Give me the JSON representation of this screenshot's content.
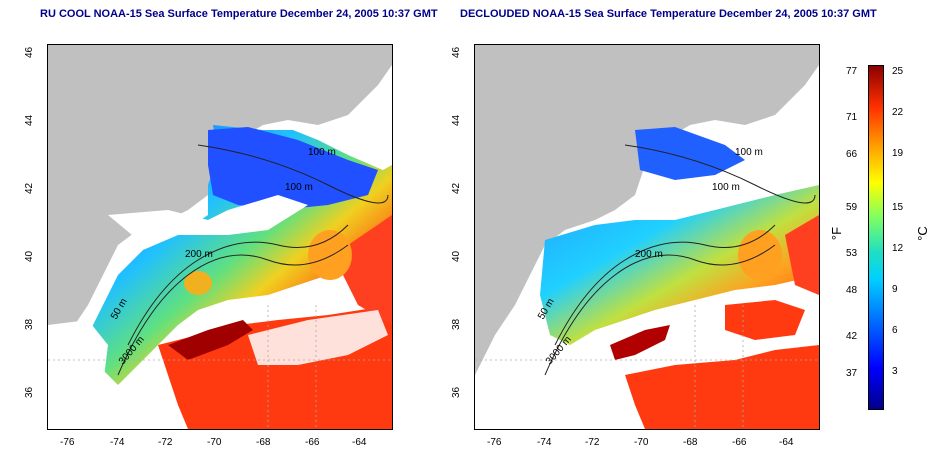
{
  "left_panel": {
    "title": "RU COOL NOAA-15 Sea Surface Temperature December 24, 2005 10:37 GMT"
  },
  "right_panel": {
    "title": "DECLOUDED NOAA-15 Sea Surface Temperature December 24, 2005 10:37 GMT"
  },
  "axes": {
    "longitude_ticks": [
      "-76",
      "-74",
      "-72",
      "-70",
      "-68",
      "-66",
      "-64"
    ],
    "latitude_ticks": [
      "46",
      "44",
      "42",
      "40",
      "38",
      "36"
    ]
  },
  "contour_labels": [
    "100 m",
    "100 m",
    "200 m",
    "200 m",
    "50 m",
    "3000 m"
  ],
  "colorbar": {
    "fahrenheit_label": "°F",
    "celsius_label": "°C",
    "fahrenheit_ticks": [
      "77",
      "71",
      "66",
      "59",
      "53",
      "48",
      "42",
      "37"
    ],
    "celsius_ticks": [
      "25",
      "22",
      "19",
      "15",
      "12",
      "9",
      "6",
      "3"
    ]
  },
  "colors": {
    "land": "#c0c0c0",
    "cold": "#0000ff",
    "warm": "#ff3000",
    "title": "#00008b"
  }
}
